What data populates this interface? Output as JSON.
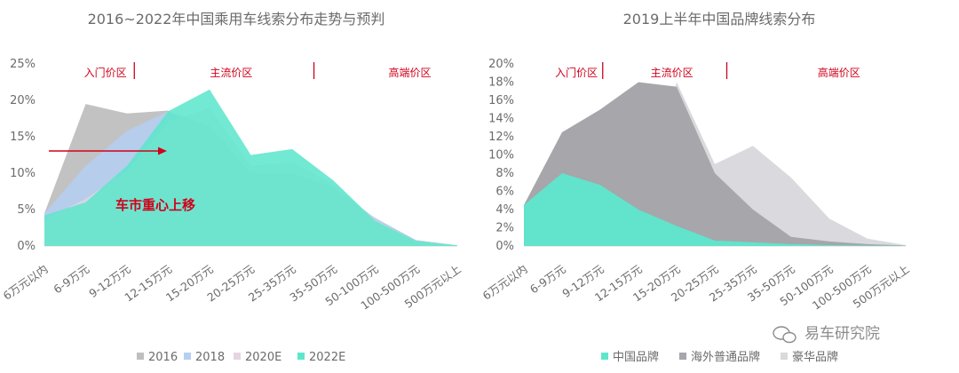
{
  "chart_data": [
    {
      "type": "area",
      "title": "2016~2022年中国乘用车线索分布走势与预判",
      "categories": [
        "6万元以内",
        "6-9万元",
        "9-12万元",
        "12-15万元",
        "15-20万元",
        "20-25万元",
        "25-35万元",
        "35-50万元",
        "50-100万元",
        "100-500万元",
        "500万元以上"
      ],
      "yticks": [
        "0%",
        "5%",
        "10%",
        "15%",
        "20%",
        "25%"
      ],
      "ylim": [
        0,
        25
      ],
      "series": [
        {
          "name": "2016",
          "color": "#bfbfbf",
          "values": [
            4.5,
            19.5,
            18.2,
            18.6,
            14.0,
            10.0,
            9.5,
            7.0,
            3.8,
            0.8,
            0.1
          ]
        },
        {
          "name": "2018",
          "color": "#b4cff2",
          "values": [
            4.5,
            11.0,
            15.8,
            18.5,
            16.5,
            10.0,
            10.0,
            8.0,
            3.9,
            0.8,
            0.1
          ]
        },
        {
          "name": "2020E",
          "color": "#e6d5e0",
          "values": [
            3.6,
            6.5,
            10.2,
            17.0,
            19.0,
            11.0,
            11.5,
            8.5,
            3.6,
            0.7,
            0.1
          ]
        },
        {
          "name": "2022E",
          "color": "#5ee6cc",
          "values": [
            4.2,
            6.0,
            11.0,
            18.5,
            21.5,
            12.5,
            13.3,
            9.0,
            3.5,
            0.7,
            0.1
          ]
        }
      ],
      "zones": [
        {
          "label": "入门价区",
          "from": 0.6,
          "to": 2.35
        },
        {
          "label": "主流价区",
          "from": 2.35,
          "to": 6.7
        },
        {
          "label": "高端价区",
          "from": 6.7,
          "to": 11
        }
      ],
      "annotation": "车市重心上移"
    },
    {
      "type": "area",
      "title": "2019上半年中国品牌线索分布",
      "categories": [
        "6万元以内",
        "6-9万元",
        "9-12万元",
        "12-15万元",
        "15-20万元",
        "20-25万元",
        "25-35万元",
        "35-50万元",
        "50-100万元",
        "100-500万元",
        "500万元以上"
      ],
      "yticks": [
        "0%",
        "2%",
        "4%",
        "6%",
        "8%",
        "10%",
        "12%",
        "14%",
        "16%",
        "18%",
        "20%"
      ],
      "ylim": [
        0,
        20
      ],
      "series": [
        {
          "name": "豪华品牌",
          "color": "#d9d9de",
          "values": [
            0,
            0,
            0,
            0.2,
            18.0,
            9.0,
            11.0,
            7.5,
            3.0,
            0.8,
            0.1
          ]
        },
        {
          "name": "海外普通品牌",
          "color": "#a6a6ab",
          "values": [
            4.5,
            12.5,
            15.0,
            18.0,
            17.5,
            8.0,
            4.0,
            1.0,
            0.5,
            0.2,
            0.05
          ]
        },
        {
          "name": "中国品牌",
          "color": "#5ee6cc",
          "values": [
            4.5,
            8.0,
            6.7,
            4.0,
            2.2,
            0.6,
            0.4,
            0.2,
            0.1,
            0.05,
            0.02
          ]
        }
      ],
      "legend_order": [
        "中国品牌",
        "海外普通品牌",
        "豪华品牌"
      ],
      "zones": [
        {
          "label": "入门价区",
          "from": 0.5,
          "to": 2.25
        },
        {
          "label": "主流价区",
          "from": 2.25,
          "to": 5.5
        },
        {
          "label": "高端价区",
          "from": 5.5,
          "to": 11
        }
      ]
    }
  ],
  "watermark": "易车研究院"
}
